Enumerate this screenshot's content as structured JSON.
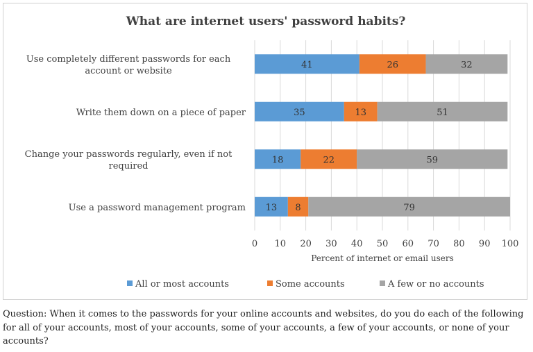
{
  "chart_data": {
    "type": "bar",
    "orientation": "horizontal",
    "stacked": true,
    "title": "What are internet users' password habits?",
    "xlabel": "Percent of internet or email users",
    "ylabel": "",
    "xlim": [
      0,
      100
    ],
    "x_ticks": [
      0,
      10,
      20,
      30,
      40,
      50,
      60,
      70,
      80,
      90,
      100
    ],
    "grid": true,
    "legend_position": "bottom",
    "categories": [
      "Use completely different passwords for each account or website",
      "Write them down on a piece of paper",
      "Change your passwords regularly, even if not required",
      "Use a password management program"
    ],
    "series": [
      {
        "name": "All or most accounts",
        "color": "#5b9bd5",
        "values": [
          41,
          35,
          18,
          13
        ]
      },
      {
        "name": "Some accounts",
        "color": "#ed7d31",
        "values": [
          26,
          13,
          22,
          8
        ]
      },
      {
        "name": "A few or no accounts",
        "color": "#a5a5a5",
        "values": [
          32,
          51,
          59,
          79
        ]
      }
    ]
  },
  "question": "Question: When it comes to the passwords for your online accounts and websites, do you do each of the following for all of your accounts, most of your accounts, some of your accounts, a few of your accounts, or none of your accounts?"
}
